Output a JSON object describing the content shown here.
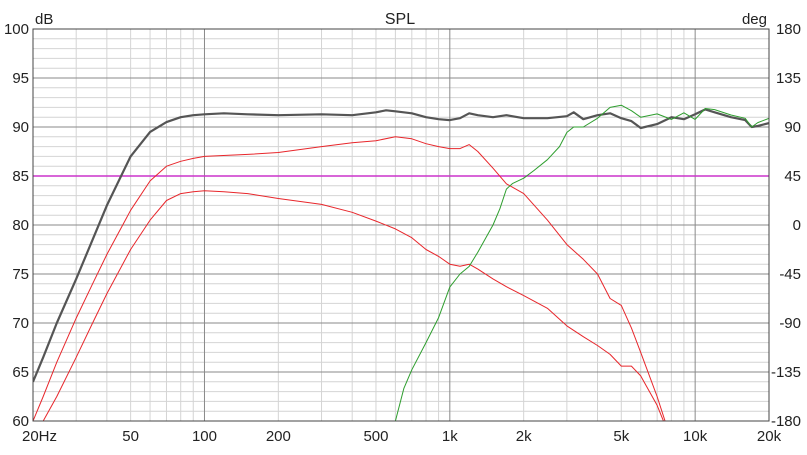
{
  "chart_data": {
    "type": "line",
    "title": "SPL",
    "y_left_unit": "dB",
    "y_right_unit": "deg",
    "x_scale": "log",
    "xlim": [
      20,
      20000
    ],
    "ylim_left": [
      60,
      100
    ],
    "ylim_right": [
      -180,
      180
    ],
    "x_tick_values": [
      20,
      50,
      100,
      200,
      500,
      1000,
      2000,
      5000,
      10000,
      20000
    ],
    "x_tick_labels": [
      "20Hz",
      "50",
      "100",
      "200",
      "500",
      "1k",
      "2k",
      "5k",
      "10k",
      "20k"
    ],
    "y_left_ticks": [
      60,
      65,
      70,
      75,
      80,
      85,
      90,
      95,
      100
    ],
    "y_right_ticks": [
      -180,
      -135,
      -90,
      -45,
      0,
      45,
      90,
      135,
      180
    ],
    "grid": true,
    "reference_line_db": 85,
    "colors": {
      "total": "#555555",
      "driver_a": "#e8262b",
      "driver_b": "#e8262b",
      "phase": "#2e9e2e",
      "reference": "#cc33cc",
      "grid_major": "#8a8a8a",
      "grid_minor": "#d4d4d4"
    },
    "series": [
      {
        "key": "total",
        "axis": "left",
        "x": [
          20,
          22,
          25,
          30,
          35,
          40,
          50,
          60,
          70,
          80,
          90,
          100,
          120,
          150,
          200,
          300,
          400,
          500,
          550,
          600,
          700,
          800,
          900,
          1000,
          1100,
          1200,
          1300,
          1500,
          1700,
          2000,
          2500,
          3000,
          3200,
          3500,
          4000,
          4500,
          5000,
          5500,
          6000,
          7000,
          8000,
          9000,
          10000,
          11000,
          12000,
          14000,
          16000,
          17000,
          18000,
          20000
        ],
        "y": [
          64,
          66.5,
          70,
          74.5,
          78.5,
          82,
          87,
          89.5,
          90.5,
          91,
          91.2,
          91.3,
          91.4,
          91.3,
          91.2,
          91.3,
          91.2,
          91.5,
          91.7,
          91.6,
          91.4,
          91.0,
          90.8,
          90.7,
          90.9,
          91.4,
          91.2,
          91.0,
          91.2,
          90.9,
          90.9,
          91.1,
          91.5,
          90.8,
          91.2,
          91.4,
          90.9,
          90.6,
          89.9,
          90.3,
          91.0,
          90.8,
          91.3,
          91.8,
          91.5,
          91.0,
          90.7,
          90.0,
          90.1,
          90.4
        ]
      },
      {
        "key": "driver_a",
        "axis": "left",
        "x": [
          20,
          22,
          25,
          30,
          35,
          40,
          50,
          60,
          70,
          80,
          90,
          100,
          150,
          200,
          300,
          400,
          500,
          600,
          700,
          800,
          900,
          1000,
          1100,
          1200,
          1300,
          1500,
          1700,
          2000,
          2500,
          3000,
          3500,
          4000,
          4500,
          5000,
          5500,
          6000,
          7000,
          8000
        ],
        "y": [
          60,
          62.5,
          66,
          70.5,
          74,
          77,
          81.5,
          84.5,
          86,
          86.5,
          86.8,
          87,
          87.2,
          87.4,
          88,
          88.4,
          88.6,
          89,
          88.8,
          88.3,
          88.0,
          87.8,
          87.8,
          88.2,
          87.5,
          85.8,
          84.2,
          83.2,
          80.5,
          78,
          76.5,
          75,
          72.5,
          71.8,
          69.5,
          67,
          62.5,
          58
        ]
      },
      {
        "key": "driver_b",
        "axis": "left",
        "x": [
          22,
          25,
          30,
          35,
          40,
          50,
          60,
          70,
          80,
          90,
          100,
          120,
          150,
          200,
          300,
          400,
          500,
          600,
          700,
          800,
          900,
          1000,
          1100,
          1200,
          1300,
          1500,
          1700,
          2000,
          2500,
          3000,
          3500,
          4000,
          4500,
          5000,
          5500,
          6000,
          7000,
          8000
        ],
        "y": [
          60,
          62.5,
          66.5,
          70,
          73,
          77.5,
          80.5,
          82.5,
          83.2,
          83.4,
          83.5,
          83.4,
          83.2,
          82.7,
          82.1,
          81.3,
          80.4,
          79.6,
          78.7,
          77.5,
          76.8,
          76.0,
          75.8,
          76.0,
          75.5,
          74.5,
          73.7,
          72.8,
          71.5,
          69.7,
          68.6,
          67.7,
          66.8,
          65.6,
          65.6,
          64.6,
          61.6,
          58
        ]
      },
      {
        "key": "phase",
        "axis": "right",
        "x": [
          600,
          650,
          700,
          800,
          900,
          1000,
          1100,
          1200,
          1300,
          1500,
          1600,
          1700,
          1800,
          2000,
          2200,
          2500,
          2800,
          3000,
          3200,
          3500,
          4000,
          4500,
          5000,
          5500,
          6000,
          7000,
          8000,
          9000,
          10000,
          11000,
          12000,
          14000,
          16000,
          17000,
          18000,
          20000
        ],
        "y": [
          -180,
          -150,
          -133,
          -108,
          -85,
          -57,
          -45,
          -38,
          -25,
          0,
          15,
          33,
          38,
          43,
          50,
          60,
          72,
          85,
          90,
          90,
          98,
          108,
          110,
          105,
          99,
          102,
          97,
          103,
          97,
          107,
          106,
          101,
          98,
          90,
          94,
          98
        ]
      }
    ]
  }
}
